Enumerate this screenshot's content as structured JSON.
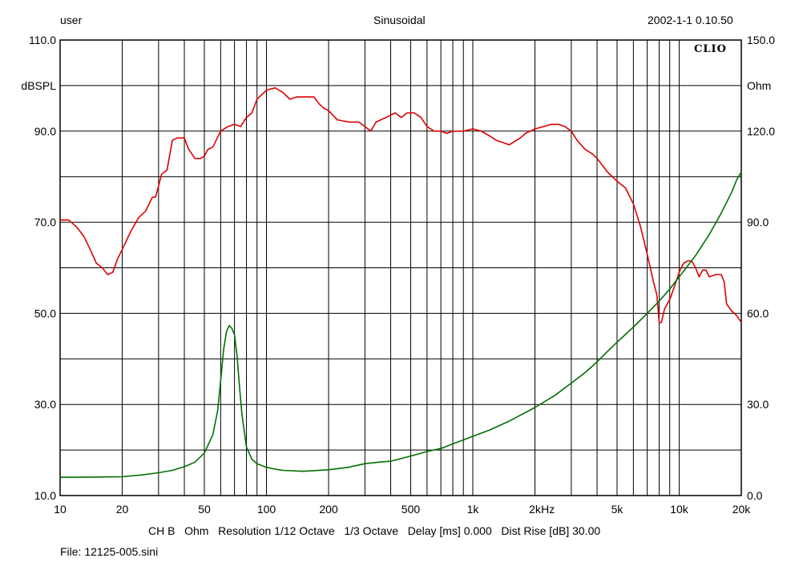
{
  "header": {
    "left": "user",
    "center": "Sinusoidal",
    "right": "2002-1-1 0.10.50"
  },
  "logo": "CLIO",
  "footer": {
    "settings": "CH B   Ohm   Resolution 1/12 Octave   1/3 Octave   Delay [ms] 0.000   Dist Rise [dB] 30.00",
    "file": "File: 12125-005.sini"
  },
  "chart_data": {
    "type": "line",
    "x_scale": "log",
    "xlim": [
      10,
      20000
    ],
    "x_tick_labels": [
      {
        "value": 10,
        "label": "10"
      },
      {
        "value": 20,
        "label": "20"
      },
      {
        "value": 50,
        "label": "50"
      },
      {
        "value": 100,
        "label": "100"
      },
      {
        "value": 200,
        "label": "200"
      },
      {
        "value": 500,
        "label": "500"
      },
      {
        "value": 1000,
        "label": "1k"
      },
      {
        "value": 2000,
        "label": "2k"
      },
      {
        "value": 5000,
        "label": "5k"
      },
      {
        "value": 10000,
        "label": "10k"
      },
      {
        "value": 20000,
        "label": "20k"
      }
    ],
    "x_unit": "Hz",
    "left_axis": {
      "label": "dBSPL",
      "range": [
        10,
        110
      ],
      "ticks": [
        "10.0",
        "30.0",
        "50.0",
        "70.0",
        "90.0",
        "110.0"
      ]
    },
    "right_axis": {
      "label": "Ohm",
      "range": [
        0,
        150
      ],
      "ticks": [
        "0.0",
        "30.0",
        "60.0",
        "90.0",
        "120.0",
        "150.0"
      ]
    },
    "grid": true,
    "series": [
      {
        "axis": "left",
        "color": "#dd0000",
        "points": [
          [
            10,
            70.5
          ],
          [
            11,
            70.5
          ],
          [
            12,
            69
          ],
          [
            13,
            67
          ],
          [
            14,
            64
          ],
          [
            15,
            61
          ],
          [
            16,
            60
          ],
          [
            17,
            58.5
          ],
          [
            18,
            59
          ],
          [
            19,
            62
          ],
          [
            20,
            64
          ],
          [
            22,
            68
          ],
          [
            24,
            71
          ],
          [
            26,
            72.5
          ],
          [
            28,
            75.5
          ],
          [
            29,
            75.5
          ],
          [
            30,
            78
          ],
          [
            31,
            80.5
          ],
          [
            32,
            81
          ],
          [
            33,
            81.5
          ],
          [
            35,
            88
          ],
          [
            37,
            88.5
          ],
          [
            40,
            88.5
          ],
          [
            42,
            86
          ],
          [
            45,
            84
          ],
          [
            48,
            84
          ],
          [
            50,
            84.5
          ],
          [
            52,
            86
          ],
          [
            55,
            86.5
          ],
          [
            60,
            90
          ],
          [
            65,
            91
          ],
          [
            70,
            91.5
          ],
          [
            75,
            91
          ],
          [
            80,
            93
          ],
          [
            85,
            94
          ],
          [
            90,
            97
          ],
          [
            100,
            99
          ],
          [
            110,
            99.5
          ],
          [
            120,
            98.5
          ],
          [
            130,
            97
          ],
          [
            140,
            97.5
          ],
          [
            150,
            97.5
          ],
          [
            160,
            97.5
          ],
          [
            170,
            97.5
          ],
          [
            180,
            96
          ],
          [
            190,
            95
          ],
          [
            200,
            94.5
          ],
          [
            220,
            92.5
          ],
          [
            250,
            92
          ],
          [
            280,
            92
          ],
          [
            300,
            91
          ],
          [
            320,
            90
          ],
          [
            340,
            92
          ],
          [
            380,
            93
          ],
          [
            420,
            94
          ],
          [
            450,
            93
          ],
          [
            480,
            94
          ],
          [
            520,
            94
          ],
          [
            560,
            93
          ],
          [
            600,
            91
          ],
          [
            650,
            90
          ],
          [
            700,
            90
          ],
          [
            750,
            89.5
          ],
          [
            800,
            90
          ],
          [
            900,
            90
          ],
          [
            1000,
            90.5
          ],
          [
            1100,
            90
          ],
          [
            1200,
            89
          ],
          [
            1300,
            88
          ],
          [
            1400,
            87.5
          ],
          [
            1500,
            87
          ],
          [
            1700,
            88.5
          ],
          [
            1800,
            89.5
          ],
          [
            2000,
            90.5
          ],
          [
            2200,
            91
          ],
          [
            2400,
            91.5
          ],
          [
            2600,
            91.5
          ],
          [
            2800,
            91
          ],
          [
            3000,
            90
          ],
          [
            3200,
            88
          ],
          [
            3500,
            86
          ],
          [
            3800,
            85
          ],
          [
            4000,
            84
          ],
          [
            4500,
            81
          ],
          [
            5000,
            79
          ],
          [
            5500,
            77.5
          ],
          [
            6000,
            74
          ],
          [
            6500,
            69
          ],
          [
            7000,
            63
          ],
          [
            7500,
            57
          ],
          [
            7800,
            54
          ],
          [
            8000,
            48
          ],
          [
            8200,
            48
          ],
          [
            8500,
            51
          ],
          [
            9000,
            53
          ],
          [
            9500,
            56
          ],
          [
            10000,
            59
          ],
          [
            10500,
            61
          ],
          [
            11000,
            61.5
          ],
          [
            11500,
            61.5
          ],
          [
            12000,
            60
          ],
          [
            12500,
            58
          ],
          [
            13000,
            59.5
          ],
          [
            13500,
            59.5
          ],
          [
            14000,
            58
          ],
          [
            15000,
            58.5
          ],
          [
            16000,
            58.5
          ],
          [
            16500,
            57
          ],
          [
            17000,
            52
          ],
          [
            18000,
            50.5
          ],
          [
            19000,
            49.5
          ],
          [
            20000,
            48
          ]
        ]
      },
      {
        "axis": "right",
        "color": "#007000",
        "points": [
          [
            10,
            6
          ],
          [
            15,
            6.1
          ],
          [
            20,
            6.2
          ],
          [
            25,
            6.8
          ],
          [
            30,
            7.5
          ],
          [
            35,
            8.3
          ],
          [
            40,
            9.5
          ],
          [
            45,
            11
          ],
          [
            50,
            14
          ],
          [
            55,
            20
          ],
          [
            58,
            28
          ],
          [
            60,
            38
          ],
          [
            62,
            48
          ],
          [
            64,
            54
          ],
          [
            66,
            56
          ],
          [
            68,
            55
          ],
          [
            70,
            53
          ],
          [
            72,
            46
          ],
          [
            74,
            36
          ],
          [
            76,
            27
          ],
          [
            80,
            16
          ],
          [
            85,
            12
          ],
          [
            90,
            10.5
          ],
          [
            100,
            9.3
          ],
          [
            110,
            8.7
          ],
          [
            120,
            8.3
          ],
          [
            150,
            8
          ],
          [
            200,
            8.5
          ],
          [
            250,
            9.3
          ],
          [
            300,
            10.5
          ],
          [
            350,
            11
          ],
          [
            400,
            11.3
          ],
          [
            500,
            13
          ],
          [
            600,
            14.5
          ],
          [
            700,
            15.5
          ],
          [
            800,
            17
          ],
          [
            1000,
            19.5
          ],
          [
            1200,
            21.5
          ],
          [
            1500,
            24.5
          ],
          [
            2000,
            29
          ],
          [
            2500,
            33
          ],
          [
            3000,
            37
          ],
          [
            3500,
            40.5
          ],
          [
            4000,
            44
          ],
          [
            4500,
            47.5
          ],
          [
            5000,
            50.5
          ],
          [
            6000,
            55.5
          ],
          [
            7000,
            60
          ],
          [
            8000,
            64
          ],
          [
            9000,
            68
          ],
          [
            10000,
            72
          ],
          [
            12000,
            79
          ],
          [
            14000,
            86
          ],
          [
            16000,
            93
          ],
          [
            18000,
            100
          ],
          [
            19000,
            104
          ],
          [
            20000,
            106.5
          ]
        ]
      }
    ]
  }
}
